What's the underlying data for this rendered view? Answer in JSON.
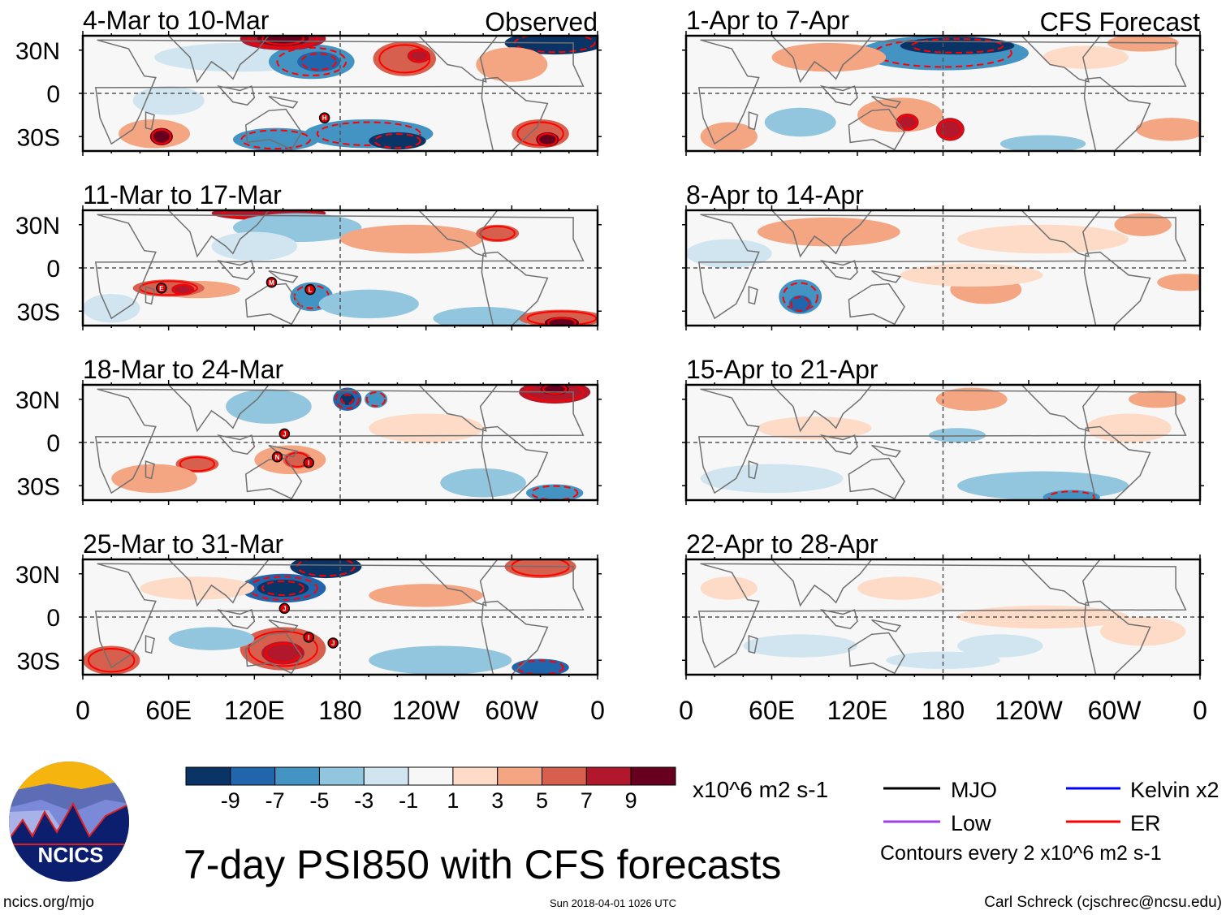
{
  "figure": {
    "title": "7-day PSI850 with CFS forecasts",
    "website": "ncics.org/mjo",
    "timestamp": "Sun 2018-04-01 1026 UTC",
    "author": "Carl Schreck (cjschrec@ncsu.edu)",
    "logo_text": "NCICS"
  },
  "columns": {
    "left_label": "Observed",
    "right_label": "CFS Forecast"
  },
  "axes": {
    "lat_labels": [
      "30N",
      "0",
      "30S"
    ],
    "lon_labels": [
      "0",
      "60E",
      "120E",
      "180",
      "120W",
      "60W",
      "0"
    ]
  },
  "panels_left": [
    {
      "title": "4-Mar to 10-Mar",
      "storms": [
        {
          "label": "H",
          "lon": 169,
          "lat": -17
        }
      ]
    },
    {
      "title": "11-Mar to 17-Mar",
      "storms": [
        {
          "label": "E",
          "lon": 55,
          "lat": -14
        },
        {
          "label": "M",
          "lon": 132,
          "lat": -10
        },
        {
          "label": "L",
          "lon": 159,
          "lat": -15
        }
      ]
    },
    {
      "title": "18-Mar to 24-Mar",
      "storms": [
        {
          "label": "J",
          "lon": 141,
          "lat": 6
        },
        {
          "label": "N",
          "lon": 136,
          "lat": -10
        },
        {
          "label": "I",
          "lon": 158,
          "lat": -14
        }
      ]
    },
    {
      "title": "25-Mar to 31-Mar",
      "storms": [
        {
          "label": "J",
          "lon": 141,
          "lat": 6
        },
        {
          "label": "I",
          "lon": 158,
          "lat": -14
        },
        {
          "label": "J",
          "lon": 175,
          "lat": -18
        }
      ]
    }
  ],
  "panels_right": [
    {
      "title": "1-Apr to 7-Apr"
    },
    {
      "title": "8-Apr to 14-Apr"
    },
    {
      "title": "15-Apr to 21-Apr"
    },
    {
      "title": "22-Apr to 28-Apr"
    }
  ],
  "colorbar": {
    "colors": [
      "#0b3466",
      "#2166ac",
      "#4393c3",
      "#92c5de",
      "#d1e5f0",
      "#f7f7f7",
      "#fddbc7",
      "#f4a582",
      "#d6604d",
      "#b2182b",
      "#67001f"
    ],
    "ticks": [
      "-9",
      "-7",
      "-5",
      "-3",
      "-1",
      "1",
      "3",
      "5",
      "7",
      "9"
    ],
    "units": "x10^6 m2 s-1"
  },
  "legend": {
    "items": [
      {
        "label": "MJO",
        "color": "#000000"
      },
      {
        "label": "Kelvin x2",
        "color": "#0000ff"
      },
      {
        "label": "Low",
        "color": "#a040e0"
      },
      {
        "label": "ER",
        "color": "#ff0000"
      }
    ],
    "contour_note": "Contours every 2 x10^6 m2 s-1"
  }
}
